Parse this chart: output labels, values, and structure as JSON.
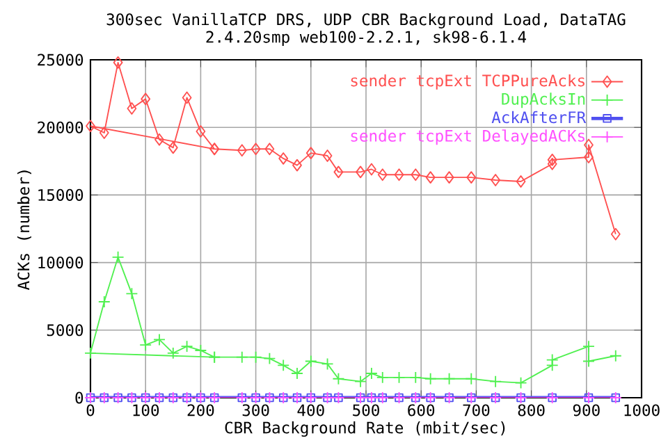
{
  "chart_data": {
    "type": "line",
    "title": "300sec VanillaTCP DRS, UDP CBR Background Load, DataTAG",
    "subtitle": "2.4.20smp web100-2.2.1, sk98-6.1.4",
    "xlabel": "CBR Background Rate (mbit/sec)",
    "ylabel": "ACKs (number)",
    "xlim": [
      0,
      1000
    ],
    "ylim": [
      0,
      25000
    ],
    "xticks": [
      0,
      100,
      200,
      300,
      400,
      500,
      600,
      700,
      800,
      900,
      1000
    ],
    "yticks": [
      0,
      5000,
      10000,
      15000,
      20000,
      25000
    ],
    "grid": true,
    "legend": "top right",
    "line_style": "solid",
    "series": [
      {
        "name": "sender tcpExt TCPPureAcks",
        "color": "#ff5050",
        "marker": "diamond",
        "x": [
          225,
          0,
          25,
          50,
          75,
          100,
          125,
          150,
          175,
          200,
          225,
          275,
          300,
          325,
          350,
          375,
          400,
          430,
          450,
          490,
          510,
          530,
          560,
          590,
          617,
          651,
          691,
          735,
          781,
          838,
          838,
          904,
          904,
          953
        ],
        "values": [
          18400,
          20100,
          19600,
          24800,
          21400,
          22100,
          19100,
          18500,
          22200,
          19700,
          18400,
          18300,
          18400,
          18400,
          17700,
          17200,
          18100,
          17900,
          16700,
          16700,
          16900,
          16500,
          16500,
          16500,
          16300,
          16300,
          16300,
          16100,
          16000,
          17300,
          17600,
          17800,
          18700,
          12100
        ]
      },
      {
        "name": "DupAcksIn",
        "color": "#50f050",
        "marker": "cross",
        "x": [
          225,
          0,
          25,
          50,
          75,
          100,
          125,
          150,
          175,
          200,
          225,
          275,
          300,
          325,
          350,
          375,
          400,
          430,
          450,
          490,
          510,
          530,
          560,
          590,
          617,
          651,
          691,
          735,
          781,
          838,
          838,
          904,
          904,
          953
        ],
        "values": [
          3000,
          3300,
          7100,
          10400,
          7700,
          3900,
          4300,
          3300,
          3800,
          3500,
          3000,
          3000,
          3000,
          2900,
          2400,
          1800,
          2700,
          2500,
          1400,
          1200,
          1800,
          1500,
          1500,
          1500,
          1400,
          1400,
          1400,
          1200,
          1100,
          2400,
          2800,
          3800,
          2700,
          3100
        ]
      },
      {
        "name": "AckAfterFR",
        "color": "#5050f0",
        "marker": "square",
        "x": [
          0,
          25,
          50,
          75,
          100,
          125,
          150,
          175,
          200,
          225,
          275,
          300,
          325,
          350,
          375,
          400,
          430,
          450,
          490,
          510,
          530,
          560,
          590,
          617,
          651,
          691,
          735,
          781,
          838,
          904,
          953
        ],
        "values": [
          0,
          0,
          0,
          0,
          0,
          0,
          0,
          0,
          0,
          0,
          0,
          0,
          0,
          0,
          0,
          0,
          0,
          0,
          0,
          0,
          0,
          0,
          0,
          0,
          0,
          0,
          0,
          0,
          0,
          0,
          0
        ]
      },
      {
        "name": "sender tcpExt DelayedACKs",
        "color": "#ff50ff",
        "marker": "cross",
        "x": [
          0,
          25,
          50,
          75,
          100,
          125,
          150,
          175,
          200,
          225,
          275,
          300,
          325,
          350,
          375,
          400,
          430,
          450,
          490,
          510,
          530,
          560,
          590,
          617,
          651,
          691,
          735,
          781,
          838,
          904,
          953
        ],
        "values": [
          0,
          0,
          0,
          0,
          0,
          0,
          0,
          0,
          0,
          0,
          0,
          0,
          0,
          0,
          0,
          0,
          0,
          0,
          0,
          0,
          0,
          0,
          0,
          0,
          0,
          0,
          0,
          0,
          0,
          0,
          0
        ]
      }
    ]
  }
}
